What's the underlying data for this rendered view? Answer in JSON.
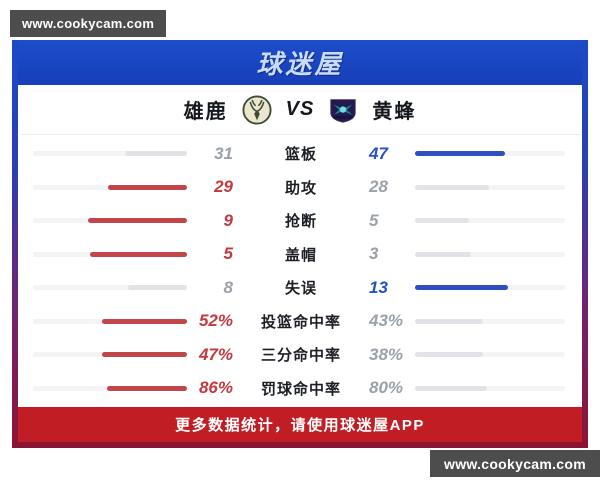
{
  "watermark": {
    "text": "www.cookycam.com"
  },
  "header": {
    "app_name": "球迷屋"
  },
  "teams": {
    "left": {
      "name": "雄鹿",
      "logo": "bucks-crest"
    },
    "vs_label": "VS",
    "right": {
      "name": "黄蜂",
      "logo": "hornets-crest"
    }
  },
  "colors": {
    "header_blue": "#1d4dcb",
    "footer_red": "#c01e24",
    "win_left_red": "#c5383e",
    "win_right_blue": "#2553c5",
    "loser_gray": "#9ba1a8",
    "bar_gray": "#e2e3e7"
  },
  "stats": {
    "rows": [
      {
        "label": "篮板",
        "left_value": "31",
        "right_value": "47",
        "left_ratio": 0.4,
        "right_ratio": 0.6,
        "winner": "right"
      },
      {
        "label": "助攻",
        "left_value": "29",
        "right_value": "28",
        "left_ratio": 0.51,
        "right_ratio": 0.49,
        "winner": "left"
      },
      {
        "label": "抢断",
        "left_value": "9",
        "right_value": "5",
        "left_ratio": 0.64,
        "right_ratio": 0.36,
        "winner": "left"
      },
      {
        "label": "盖帽",
        "left_value": "5",
        "right_value": "3",
        "left_ratio": 0.63,
        "right_ratio": 0.37,
        "winner": "left"
      },
      {
        "label": "失误",
        "left_value": "8",
        "right_value": "13",
        "left_ratio": 0.38,
        "right_ratio": 0.62,
        "winner": "right"
      },
      {
        "label": "投篮命中率",
        "left_value": "52%",
        "right_value": "43%",
        "left_ratio": 0.55,
        "right_ratio": 0.45,
        "winner": "left"
      },
      {
        "label": "三分命中率",
        "left_value": "47%",
        "right_value": "38%",
        "left_ratio": 0.55,
        "right_ratio": 0.45,
        "winner": "left"
      },
      {
        "label": "罚球命中率",
        "left_value": "86%",
        "right_value": "80%",
        "left_ratio": 0.52,
        "right_ratio": 0.48,
        "winner": "left"
      }
    ]
  },
  "footer": {
    "text": "更多数据统计，请使用球迷屋APP"
  }
}
